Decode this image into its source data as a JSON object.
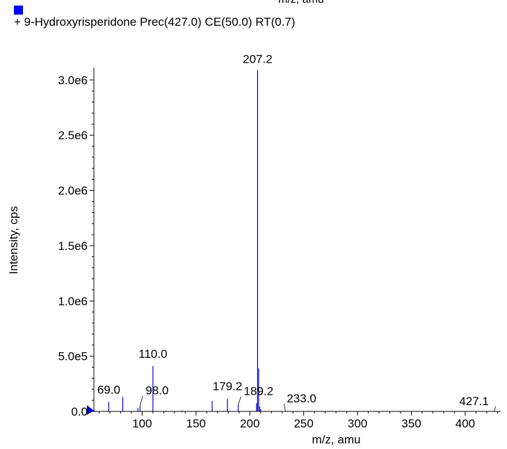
{
  "header": {
    "cut_off_label": "m/z, amu"
  },
  "chart_data": {
    "type": "bar",
    "xlabel": "m/z, amu",
    "ylabel": "Intensity, cps",
    "xlim": [
      50,
      433
    ],
    "ylim": [
      0,
      3100000
    ],
    "x_ticks": [
      {
        "value": 100,
        "label": "100"
      },
      {
        "value": 150,
        "label": "150"
      },
      {
        "value": 200,
        "label": "200"
      },
      {
        "value": 250,
        "label": "250"
      },
      {
        "value": 300,
        "label": "300"
      },
      {
        "value": 350,
        "label": "350"
      },
      {
        "value": 400,
        "label": "400"
      }
    ],
    "y_ticks": [
      {
        "value": 0,
        "label": "0.0"
      },
      {
        "value": 500000,
        "label": "5.0e5"
      },
      {
        "value": 1000000,
        "label": "1.0e6"
      },
      {
        "value": 1500000,
        "label": "1.5e6"
      },
      {
        "value": 2000000,
        "label": "2.0e6"
      },
      {
        "value": 2500000,
        "label": "2.5e6"
      },
      {
        "value": 3000000,
        "label": "3.0e6"
      }
    ],
    "series": [
      {
        "name": "+ 9-Hydroxyrisperidone Prec(427.0) CE(50.0) RT(0.7)",
        "color": "#0000cc",
        "x": [
          56.0,
          69.0,
          82.0,
          96.0,
          98.0,
          110.0,
          122.0,
          137.0,
          152.0,
          165.0,
          179.2,
          189.2,
          206.2,
          207.2,
          208.2,
          209.2,
          210.2,
          233.0,
          427.1
        ],
        "values": [
          8000,
          85000,
          130000,
          30000,
          52000,
          410000,
          6000,
          8000,
          5000,
          95000,
          115000,
          60000,
          75000,
          3090000,
          390000,
          45000,
          18000,
          5000,
          6000
        ]
      }
    ],
    "peak_labels": [
      {
        "text": "207.2",
        "x": 207.2
      },
      {
        "text": "110.0",
        "x": 110.0
      },
      {
        "text": "69.0",
        "x": 69.0
      },
      {
        "text": "98.0",
        "x": 98.0
      },
      {
        "text": "179.2",
        "x": 179.2
      },
      {
        "text": "189.2",
        "x": 189.2
      },
      {
        "text": "233.0",
        "x": 233.0
      },
      {
        "text": "427.1",
        "x": 427.1
      }
    ],
    "legend": {
      "text": "+ 9-Hydroxyrisperidone Prec(427.0) CE(50.0) RT(0.7)",
      "color": "#0000ff",
      "placement": "top-left"
    }
  }
}
